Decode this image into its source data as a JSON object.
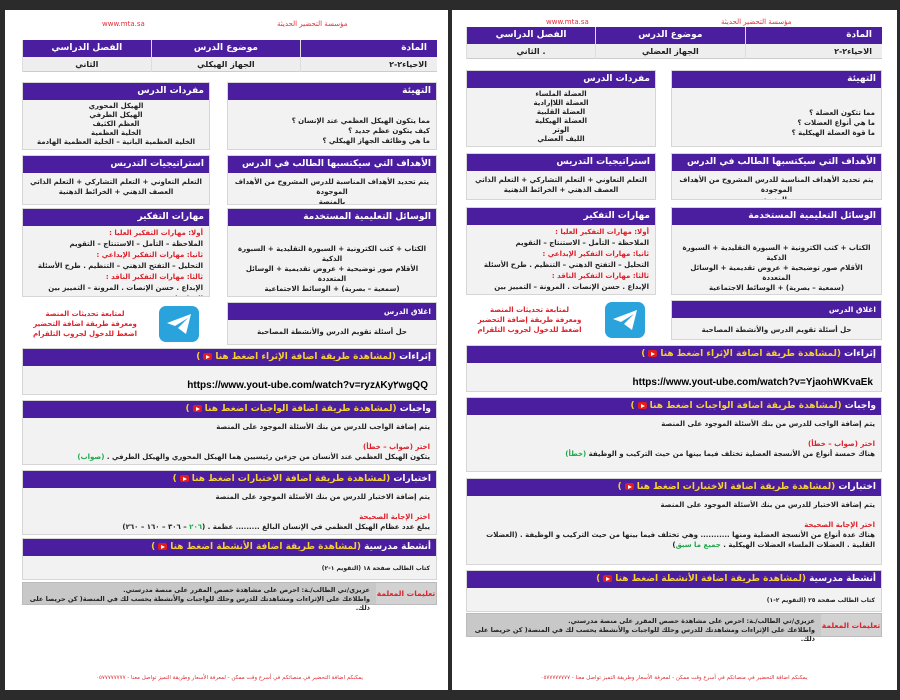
{
  "pages": [
    {
      "site": "www.mta.sa",
      "org": "مؤسسة التحضير الحديثة",
      "header": {
        "subject_label": "المادة",
        "subject": "الاحياء٢-٢",
        "topic_label": "موضوع الدرس",
        "topic": "الجهاز الهيكلي",
        "term_label": "الفصل الدراسي",
        "term": "الثاني"
      },
      "warmup": {
        "title": "التهيئة",
        "lines": [
          "مما يتكون الهيكل العظمي عند الإنسان ؟",
          "كيف يتكون عظم جديد ؟",
          "ما هي وظائف الجهاز الهيكلي ؟"
        ]
      },
      "vocab": {
        "title": "مفردات الدرس",
        "lines": [
          "الهيكل المحوري",
          "الهيكل الطرفي",
          "العظم الكثيف",
          "الخلية العظمية",
          "الخلية العظمية البانية – الخلية العظمية الهادمة"
        ]
      },
      "goals": {
        "title": "الأهداف التي سيكتسبها الطالب في الدرس",
        "lines": [
          "يتم تحديد الأهداف المناسبة للدرس المشروح من الأهداف الموجودة",
          "بالمنصة"
        ]
      },
      "strategies": {
        "title": "استراتيجيات التدريس",
        "lines": [
          "التعلم التعاوني + التعلم التشاركي + التعلم الذاتي",
          "العصف الذهني + الخرائط الذهنية"
        ]
      },
      "tools": {
        "title": "الوسائل التعليمية المستخدمة",
        "lines": [
          "الكتاب + كتب الكترونية + السبورة التقليدية + السبورة الذكية",
          "الأقلام   صور توضيحية + عروض تقديمية + الوسائل المتعددة",
          "(سمعية – بصرية) + الوسائط الاجتماعية"
        ]
      },
      "skills": {
        "title": "مهارات التفكير",
        "lines": [
          {
            "text": "أولا: مهارات التفكير العليا :",
            "color": "red"
          },
          {
            "text": "الملاحظة – التأمل – الاستنتاج – التقويم",
            "color": ""
          },
          {
            "text": "ثانيا: مهارات التفكير الإبداعي :",
            "color": "red"
          },
          {
            "text": "التحليل – التفتح الذهني – التنظيم . طرح الأسئلة",
            "color": ""
          },
          {
            "text": "ثالثا: مهارات التفكير الناقد :",
            "color": "red"
          },
          {
            "text": "الإبداع . حسن الإنصات . المرونة – التمييز بين المعلومات",
            "color": ""
          }
        ]
      },
      "telegram": {
        "lines": [
          "لمتابعة تحديثات المنصة",
          "ومعرفة طريقة اضافة التحضير",
          "اضغط للدخول لجروب التلقرام"
        ]
      },
      "closing": {
        "title": "اغلاق الدرس",
        "text": "حل أسئلة تقويم الدرس والأنشطة المصاحبة"
      },
      "enrichment": {
        "title": "إثراءات",
        "link": "(لمشاهدة طريقة اضافة الإثراء اضغط هنا",
        "close": ")",
        "url": "https://www.yout-ube.com/watch?v=ryz٨Ky٢wgQQ"
      },
      "homework": {
        "title": "واجبات",
        "link": "(لمشاهدة طريقة اضافة الواجبات اضغط هنا",
        "close": ")",
        "intro": "يتم إضافة الواجب للدرس من بنك الأسئلة الموجود على المنصة",
        "prompt": "اختر (صواب – خطأ)",
        "question": "يتكون الهيكل العظمي عند الأنسان من جزءين رئيسيين هما الهيكل المحوري والهيكل الطرفي . ",
        "answer": "(صواب)",
        "suffix": ""
      },
      "tests": {
        "title": "اختبارات",
        "link": "(لمشاهدة طريقة اضافة الاختبارات اضغط هنا",
        "close": ")",
        "intro": "يتم إضافة الاختبار للدرس من بنك الأسئلة الموجود على المنصة",
        "prompt": "اختر الإجابة الصحيحة",
        "question": "يبلغ عدد عظام الهيكل العظمي في الإنسان البالغ ......... عظمة . (",
        "answer": "٢٠٦",
        "suffix": " – ٣٠٦ – ١٦٠ – ٢٦٠)"
      },
      "activities": {
        "title": "أنشطة مدرسية",
        "link": "(لمشاهدة طريقة اضافة الأنشطة اضغط هنا",
        "close": ")",
        "text": "كتاب الطالب صفحة ١٨ (التقويم ١-٢)"
      },
      "instructions": {
        "label": "تعليمات المعلمة",
        "lines": [
          "عزيزي/تي الطالب/ـة: احرص على مشاهدة حصص المقرر على منصة مدرستي.",
          "واطلاعك على الإثراءات ومشاهدتك للدرس وحلك للواجبات والأنشطة يحسب لك في المنصة( كن حريصا على ذلك."
        ]
      },
      "footer": "يمكنكم اضافة التحضير في منصاتكم في أسرع وقت ممكن - لمعرفة الأسعار وطريقة التميز تواصل معنا - ٠٥٧٧٧٧٧٧٧٧"
    },
    {
      "site": "www.mta.sa",
      "org": "مؤسسة التحضير الحديثة",
      "header": {
        "subject_label": "المادة",
        "subject": "الاحياء٢-٢",
        "topic_label": "موضوع الدرس",
        "topic": "الجهاز العضلي",
        "term_label": "الفصل الدراسي",
        "term": "الثاني ."
      },
      "warmup": {
        "title": "التهيئة",
        "lines": [
          "مما تتكون العضلة ؟",
          "ما هي أنواع العضلات ؟",
          "ما قوة العضلة الهيكلية ؟"
        ]
      },
      "vocab": {
        "title": "مفردات الدرس",
        "lines": [
          "العضلة الملساء",
          "العضلة اللاإرادية",
          "العضلة القلبية",
          "العضلة الهيكلية",
          "الوتر",
          "الليف العضلي"
        ]
      },
      "goals": {
        "title": "الأهداف التي سيكتسبها الطالب في الدرس",
        "lines": [
          "يتم تحديد الأهداف المناسبة للدرس المشروح من الأهداف الموجودة",
          "بالمنصة"
        ]
      },
      "strategies": {
        "title": "استراتيجيات التدريس",
        "lines": [
          "التعلم التعاوني + التعلم التشاركي + التعلم الذاتي",
          "العصف الذهني + الخرائط الذهنية"
        ]
      },
      "tools": {
        "title": "الوسائل التعليمية المستخدمة",
        "lines": [
          "الكتاب + كتب الكترونية + السبورة التقليدية + السبورة الذكية",
          "الأقلام   صور توضيحية + عروض تقديمية + الوسائل المتعددة",
          "(سمعية – بصرية) + الوسائط الاجتماعية"
        ]
      },
      "skills": {
        "title": "مهارات التفكير",
        "lines": [
          {
            "text": "أولا: مهارات التفكير العليا :",
            "color": "red"
          },
          {
            "text": "الملاحظة – التأمل – الاستنتاج – التقويم",
            "color": ""
          },
          {
            "text": "ثانيا: مهارات التفكير الإبداعي :",
            "color": "red"
          },
          {
            "text": "التحليل – التفتح الذهني – التنظيم . طرح الأسئلة",
            "color": ""
          },
          {
            "text": "ثالثا: مهارات التفكير الناقد :",
            "color": "red"
          },
          {
            "text": "الإبداع . حسن الإنصات . المرونة – التمييز بين المعلومات",
            "color": ""
          }
        ]
      },
      "telegram": {
        "lines": [
          "لمتابعة تحديثات المنصة",
          "ومعرفة طريقة إضافة التحضير",
          "اضغط للدخول لجروب التلقرام"
        ]
      },
      "closing": {
        "title": "اغلاق الدرس",
        "text": "حل أسئلة تقويم الدرس والأنشطة المصاحبة"
      },
      "enrichment": {
        "title": "إثراءات",
        "link": "(لمشاهدة طريقة اضافة الإثراء اضغط هنا",
        "close": ")",
        "url": "https://www.yout-ube.com/watch?v=YjaohWKvaEk"
      },
      "homework": {
        "title": "واجبات",
        "link": "(لمشاهدة طريقة اضافة الواجبات اضغط هنا",
        "close": ")",
        "intro": "يتم إضافة الواجب للدرس من بنك الأسئلة الموجود على المنصة",
        "prompt": "اختر (صواب – خطأ)",
        "question": "هناك خمسة أنواع من الأنسجة العضلية تختلف فيما بينها من حيث التركيب و الوظيفة ",
        "answer": "(خطأ)",
        "suffix": ""
      },
      "tests": {
        "title": "اختبارات",
        "link": "(لمشاهدة طريقة اضافة الاختبارات اضغط هنا",
        "close": ")",
        "intro": "يتم إضافة الاختبار للدرس من بنك الأسئلة الموجود على المنصة",
        "prompt": "اختر الإجابة الصحيحة",
        "question": "هناك عدة أنواع من الأنسجة العضلية ومنها ........... وهي تختلف فيما بينها من حيث التركيب و الوظيفة . (العضلات القلبية . العضلات الملساء العضلات الهيكلية . ",
        "answer": "جميع ما سبق",
        "suffix": ")"
      },
      "activities": {
        "title": "أنشطة مدرسية",
        "link": "(لمشاهدة طريقة اضافة الأنشطة اضغط هنا",
        "close": ")",
        "text": "كتاب الطالب صفحة ٢٥ (التقويم ٢-١)"
      },
      "instructions": {
        "label": "تعليمات المعلمة",
        "lines": [
          "عزيزي/تي الطالب/ـة: احرص على مشاهدة حصص المقرر على منصة مدرستي.",
          "واطلاعك على الإثراءات ومشاهدتك للدرس وحلك للواجبات والأنشطة يحسب لك في المنصة( كن حريصا على ذلك."
        ]
      },
      "footer": "يمكنكم اضافة التحضير في منصاتكم في أسرع وقت ممكن - لمعرفة الأسعار وطريقة التميز تواصل معنا - ٠٥٧٧٧٧٧٧٧٧"
    }
  ]
}
